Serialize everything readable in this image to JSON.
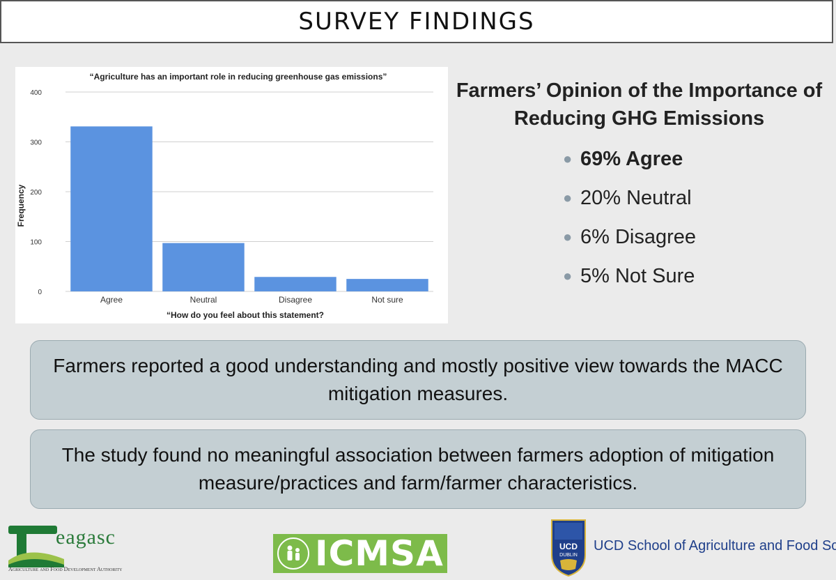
{
  "header": {
    "title": "SURVEY FINDINGS"
  },
  "chart_data": {
    "type": "bar",
    "title": "“Agriculture has an important role in reducing greenhouse gas emissions”",
    "xlabel": "“How do you feel about this statement?",
    "ylabel": "Frequency",
    "categories": [
      "Agree",
      "Neutral",
      "Disagree",
      "Not sure"
    ],
    "values": [
      331,
      97,
      29,
      25
    ],
    "ylim": [
      0,
      400
    ],
    "yticks": [
      0,
      100,
      200,
      300,
      400
    ],
    "grid": true,
    "bar_color": "#5b93e0"
  },
  "opinion": {
    "title_line1": "Farmers’ Opinion of the Importance of",
    "title_line2": "Reducing GHG Emissions",
    "items": [
      {
        "text": "69% Agree"
      },
      {
        "text": "20% Neutral"
      },
      {
        "text": "6% Disagree"
      },
      {
        "text": "5% Not Sure"
      }
    ]
  },
  "findings": [
    {
      "text": "Farmers reported a good understanding and mostly positive view towards the MACC mitigation measures."
    },
    {
      "text": "The study found no meaningful association between farmers adoption of mitigation measure/practices and farm/farmer characteristics."
    }
  ],
  "logos": {
    "teagasc": {
      "name": "eagasc",
      "tagline": "Agriculture and Food Development Authority"
    },
    "icmsa": {
      "name": "ICMSA"
    },
    "ucd": {
      "shield_label": "UCD DUBLIN",
      "name": "UCD School of Agriculture and Food Science"
    }
  }
}
